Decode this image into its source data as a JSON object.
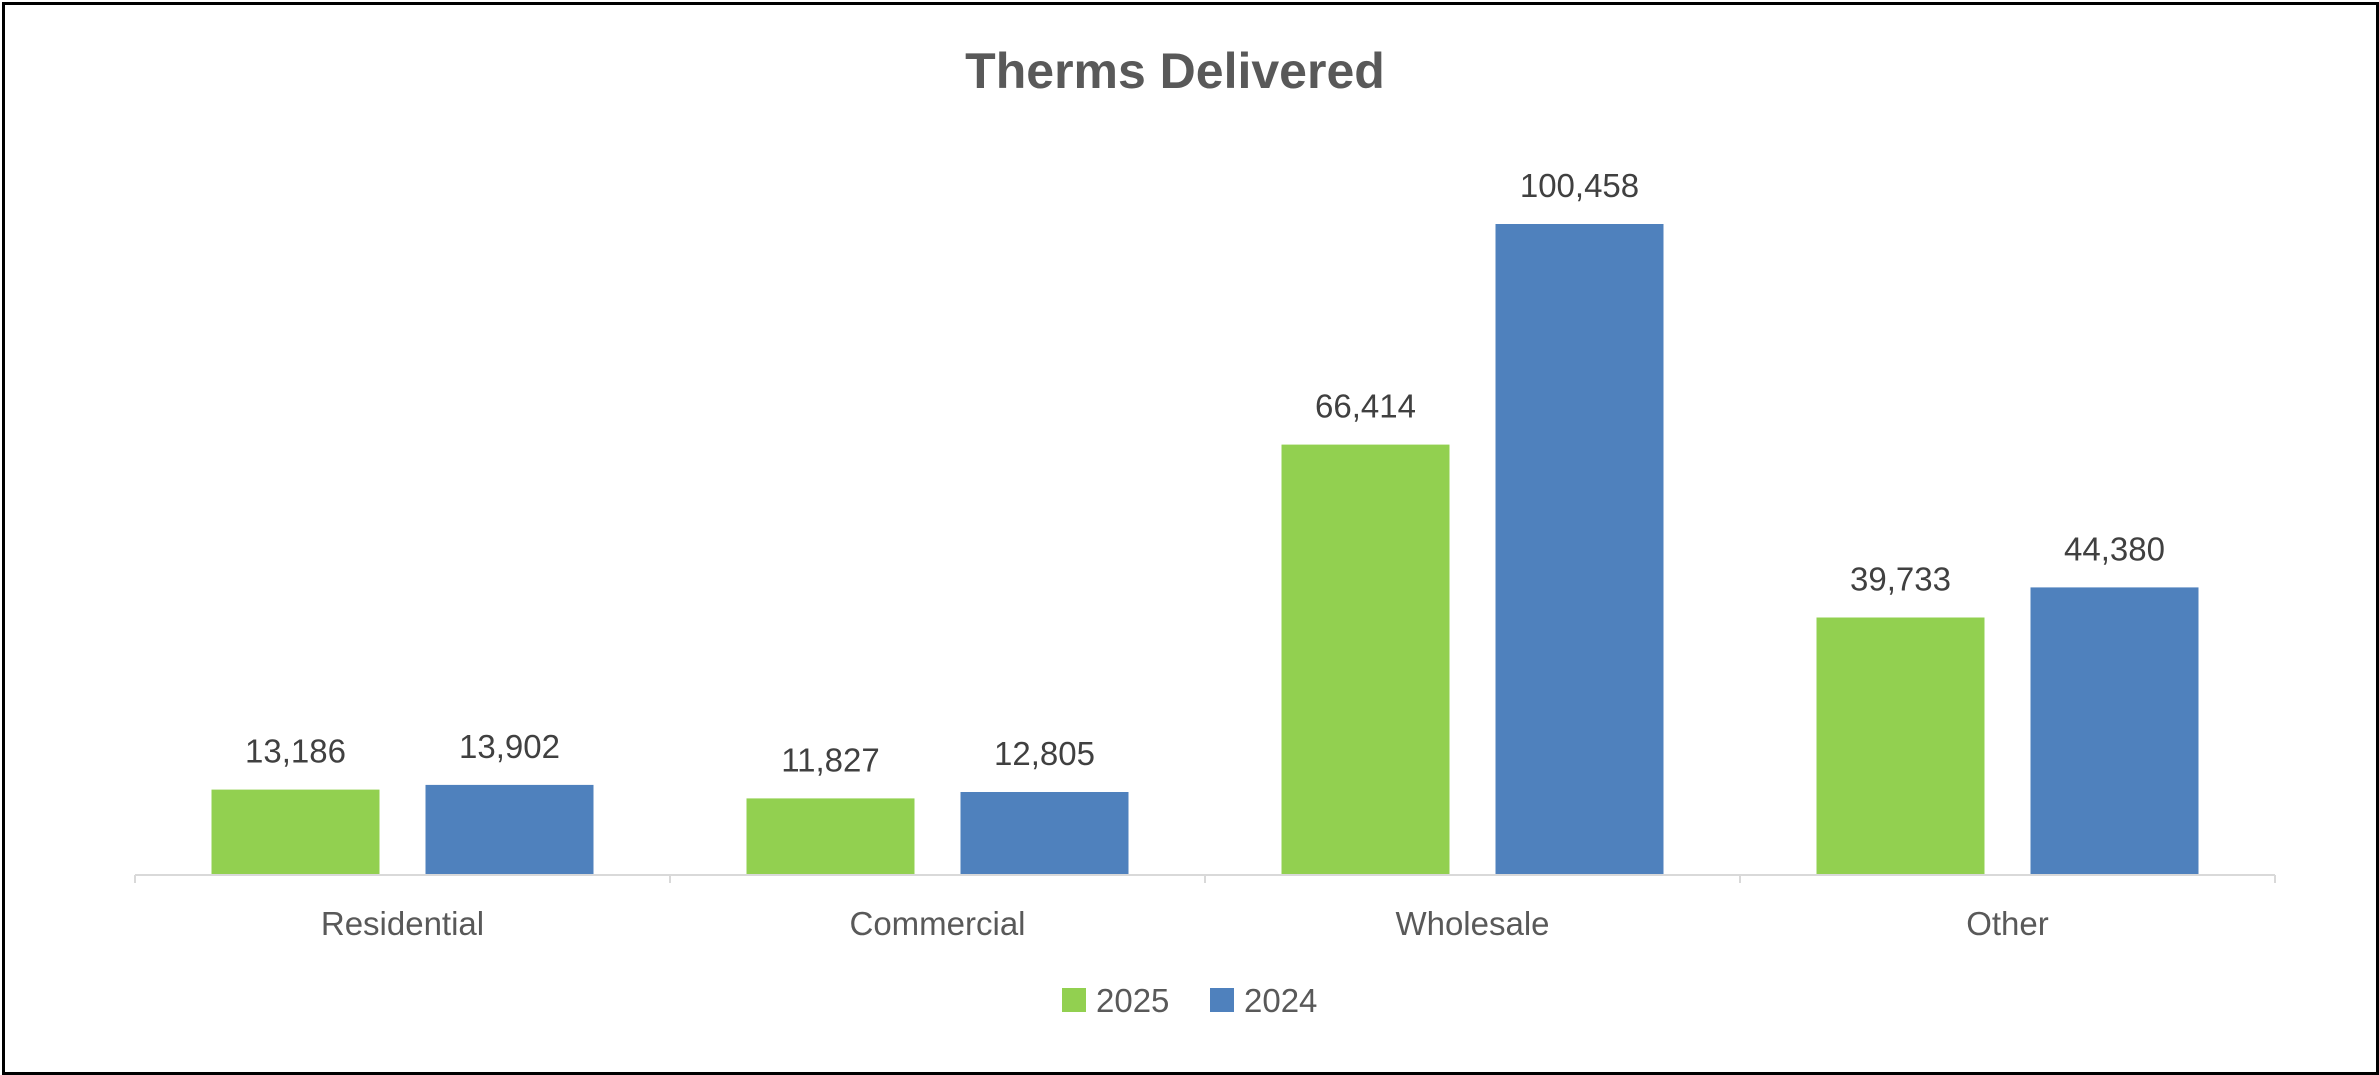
{
  "chart_data": {
    "type": "bar",
    "title": "Therms Delivered",
    "xlabel": "",
    "ylabel": "",
    "categories": [
      "Residential",
      "Commercial",
      "Wholesale",
      "Other"
    ],
    "series": [
      {
        "name": "2025",
        "color": "#92D050",
        "values": [
          13186,
          11827,
          66414,
          39733
        ],
        "labels": [
          "13,186",
          "11,827",
          "66,414",
          "39,733"
        ]
      },
      {
        "name": "2024",
        "color": "#4F81BD",
        "values": [
          13902,
          12805,
          100458,
          44380
        ],
        "labels": [
          "13,902",
          "12,805",
          "100,458",
          "44,380"
        ]
      }
    ],
    "ylim": [
      0,
      113000
    ],
    "grid": false,
    "legend": "bottom",
    "axis_color": "#D9D9D9"
  }
}
